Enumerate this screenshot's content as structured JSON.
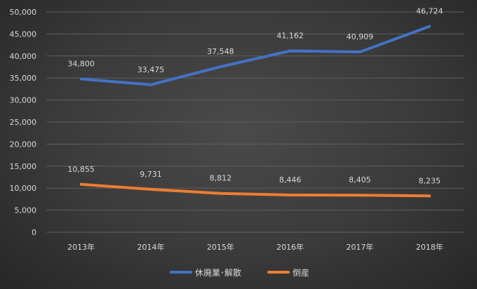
{
  "chart_data": {
    "type": "line",
    "categories": [
      "2013年",
      "2014年",
      "2015年",
      "2016年",
      "2017年",
      "2018年"
    ],
    "series": [
      {
        "name": "休廃業･解散",
        "values": [
          34800,
          33475,
          37548,
          41162,
          40909,
          46724
        ],
        "color": "#4472c4"
      },
      {
        "name": "倒産",
        "values": [
          10855,
          9731,
          8812,
          8446,
          8405,
          8235
        ],
        "color": "#ed7d31"
      }
    ],
    "ylim": [
      0,
      50000
    ],
    "yticks": [
      "0",
      "5,000",
      "10,000",
      "15,000",
      "20,000",
      "25,000",
      "30,000",
      "35,000",
      "40,000",
      "45,000",
      "50,000"
    ],
    "data_labels": [
      [
        "34,800",
        "33,475",
        "37,548",
        "41,162",
        "40,909",
        "46,724"
      ],
      [
        "10,855",
        "9,731",
        "8,812",
        "8,446",
        "8,405",
        "8,235"
      ]
    ],
    "grid": true,
    "legend_position": "bottom",
    "title": "",
    "xlabel": "",
    "ylabel": ""
  }
}
